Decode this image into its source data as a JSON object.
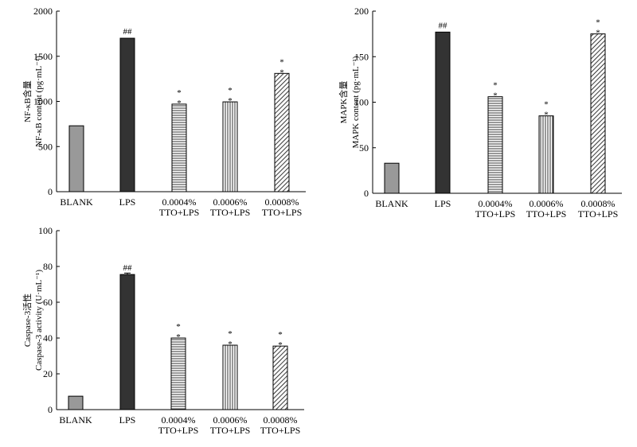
{
  "chart_data": [
    {
      "type": "bar",
      "panel": "nfkb",
      "categories": [
        [
          "BLANK"
        ],
        [
          "LPS"
        ],
        [
          "0.0004%",
          "TTO+LPS"
        ],
        [
          "0.0006%",
          "TTO+LPS"
        ],
        [
          "0.0008%",
          "TTO+LPS"
        ]
      ],
      "values": [
        730,
        1700,
        970,
        995,
        1310
      ],
      "errors": [
        0,
        0,
        0,
        0,
        0
      ],
      "annotations": [
        "",
        "##",
        "*\n*",
        "*\n*",
        "*\n*"
      ],
      "ylabel_lines": [
        "NF-κB含量",
        "NF-κB content (pg·mL⁻¹)"
      ],
      "ylim": [
        0,
        2000
      ],
      "yticks": [
        0,
        500,
        1000,
        1500,
        2000
      ],
      "grid": false,
      "fills": [
        "gray",
        "black",
        "horizontal-lines",
        "vertical-lines",
        "diagonal-lines"
      ],
      "colors": {
        "gray": "#999999",
        "black": "#333333"
      }
    },
    {
      "type": "bar",
      "panel": "mapk",
      "categories": [
        [
          "BLANK"
        ],
        [
          "LPS"
        ],
        [
          "0.0004%",
          "TTO+LPS"
        ],
        [
          "0.0006%",
          "TTO+LPS"
        ],
        [
          "0.0008%",
          "TTO+LPS"
        ]
      ],
      "values": [
        33,
        177,
        106,
        85,
        175
      ],
      "errors": [
        0,
        0,
        0,
        0,
        0
      ],
      "annotations": [
        "",
        "##",
        "*\n*",
        "*\n*",
        "*\n*"
      ],
      "ylabel_lines": [
        "MAPK含量",
        "MAPK content (pg·mL⁻¹)"
      ],
      "ylim": [
        0,
        200
      ],
      "yticks": [
        0,
        50,
        100,
        150,
        200
      ],
      "grid": false,
      "fills": [
        "gray",
        "black",
        "horizontal-lines",
        "vertical-lines",
        "diagonal-lines"
      ],
      "colors": {
        "gray": "#999999",
        "black": "#333333"
      }
    },
    {
      "type": "bar",
      "panel": "caspase",
      "categories": [
        [
          "BLANK"
        ],
        [
          "LPS"
        ],
        [
          "0.0004%",
          "TTO+LPS"
        ],
        [
          "0.0006%",
          "TTO+LPS"
        ],
        [
          "0.0008%",
          "TTO+LPS"
        ]
      ],
      "values": [
        7.5,
        75.5,
        40,
        36,
        35.5
      ],
      "errors": [
        0,
        0.8,
        0,
        0,
        0
      ],
      "annotations": [
        "",
        "##",
        "*\n*",
        "*\n*",
        "*\n*"
      ],
      "ylabel_lines": [
        "Caspase-3活性",
        "Caspase-3 activity (U·mL⁻¹)"
      ],
      "ylim": [
        0,
        100
      ],
      "yticks": [
        0,
        20,
        40,
        60,
        80,
        100
      ],
      "grid": false,
      "fills": [
        "gray",
        "black",
        "horizontal-lines",
        "vertical-lines",
        "diagonal-lines"
      ],
      "colors": {
        "gray": "#999999",
        "black": "#333333"
      }
    }
  ]
}
